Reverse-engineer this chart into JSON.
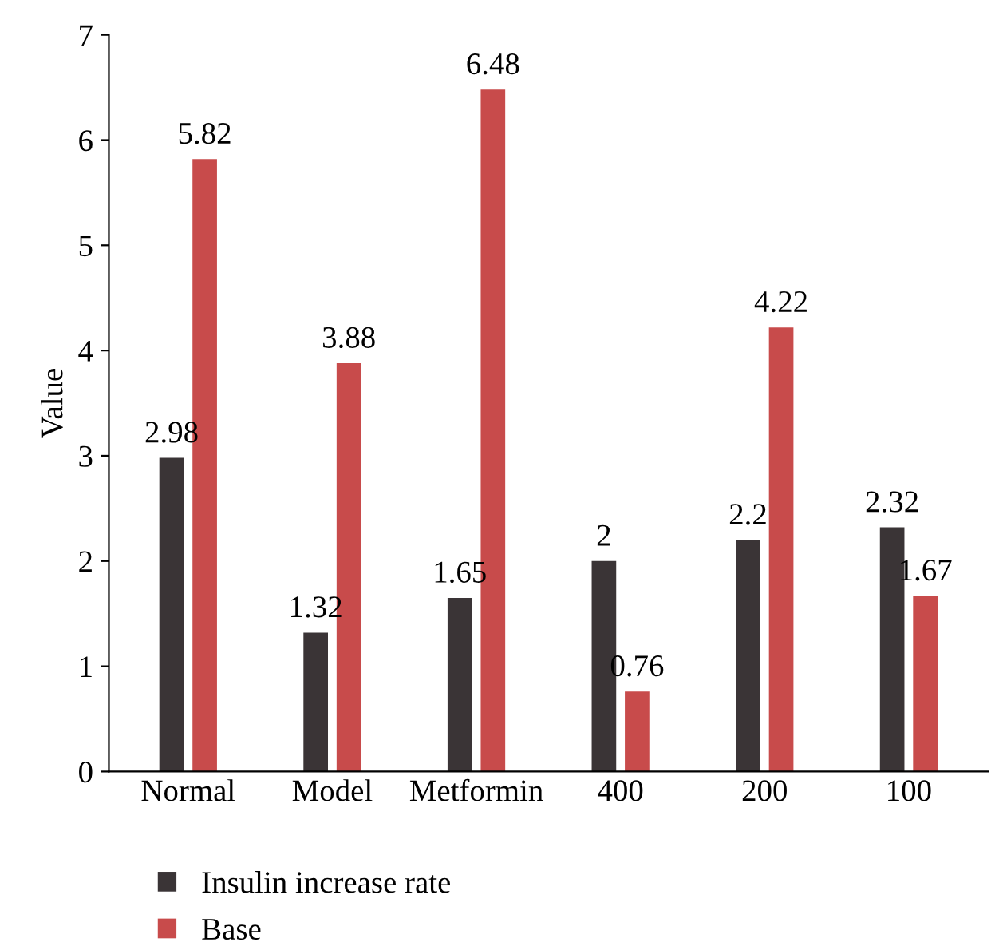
{
  "chart_data": {
    "type": "bar",
    "ylabel": "Value",
    "categories": [
      "Normal",
      "Model",
      "Metformin",
      "400",
      "200",
      "100"
    ],
    "series": [
      {
        "name": "Insulin increase rate",
        "color": "#3a3436",
        "values": [
          2.98,
          1.32,
          1.65,
          2,
          2.2,
          2.32
        ]
      },
      {
        "name": "Base",
        "color": "#c84b4b",
        "values": [
          5.82,
          3.88,
          6.48,
          0.76,
          4.22,
          1.67
        ]
      }
    ],
    "ylim": [
      0,
      7
    ],
    "yticks": [
      0,
      1,
      2,
      3,
      4,
      5,
      6,
      7
    ],
    "data_labels": true,
    "legend": "bottom",
    "grid": false
  }
}
